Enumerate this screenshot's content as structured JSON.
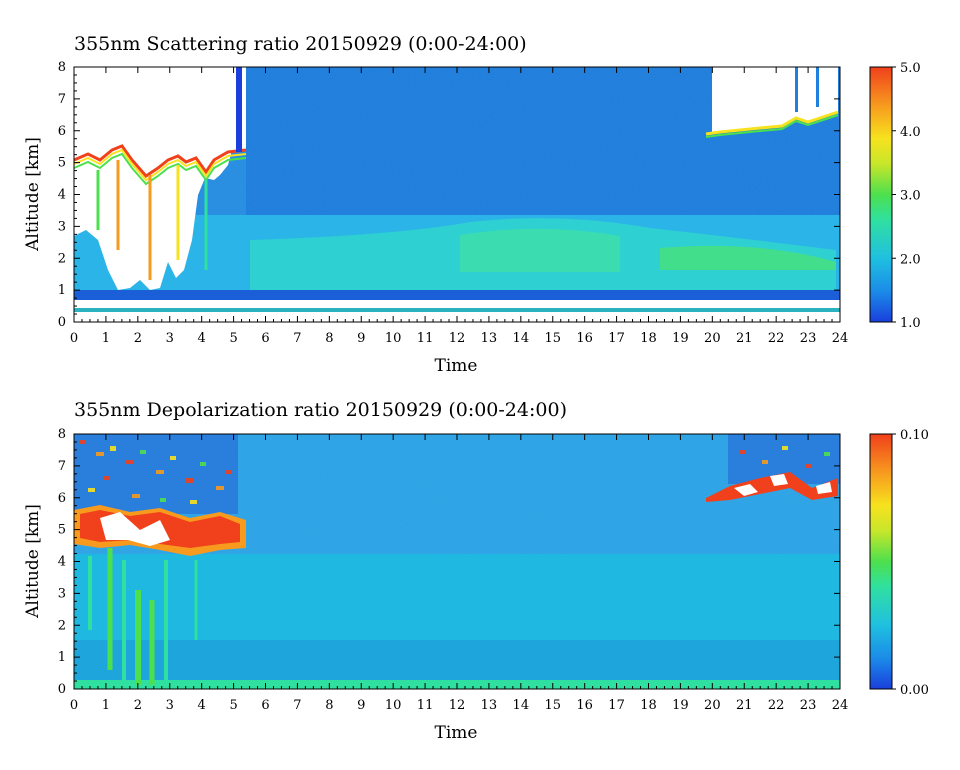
{
  "chart_data": [
    {
      "type": "heatmap",
      "title": "355nm Scattering ratio  20150929 (0:00-24:00)",
      "xlabel": "Time",
      "ylabel": "Altitude [km]",
      "xlim": [
        0,
        24
      ],
      "ylim": [
        0,
        8
      ],
      "x_ticks": [
        "0",
        "1",
        "2",
        "3",
        "4",
        "5",
        "6",
        "7",
        "8",
        "9",
        "10",
        "11",
        "12",
        "13",
        "14",
        "15",
        "16",
        "17",
        "18",
        "19",
        "20",
        "21",
        "22",
        "23",
        "24"
      ],
      "y_ticks": [
        "0",
        "1",
        "2",
        "3",
        "4",
        "5",
        "6",
        "7",
        "8"
      ],
      "colorbar": {
        "range": [
          1.0,
          5.0
        ],
        "tick_labels": [
          "1.0",
          "2.0",
          "3.0",
          "4.0",
          "5.0"
        ],
        "colors": [
          "#1a3fdc",
          "#1b8be8",
          "#1fc0e0",
          "#2fe0a0",
          "#4de04d",
          "#c8e62a",
          "#f7e21e",
          "#f79a1e",
          "#f0401c"
        ]
      },
      "features": {
        "cloud_0_5h_base_km": 4.5,
        "cloud_0_5h_top_km": 5.5,
        "cloud_20_24h_base_km": 6.0,
        "boundary_layer_top_km": 2.8,
        "near_ground_gap_km": [
          0.3,
          0.7
        ]
      }
    },
    {
      "type": "heatmap",
      "title": "355nm Depolarization ratio  20150929 (0:00-24:00)",
      "xlabel": "Time",
      "ylabel": "Altitude [km]",
      "xlim": [
        0,
        24
      ],
      "ylim": [
        0,
        8
      ],
      "x_ticks": [
        "0",
        "1",
        "2",
        "3",
        "4",
        "5",
        "6",
        "7",
        "8",
        "9",
        "10",
        "11",
        "12",
        "13",
        "14",
        "15",
        "16",
        "17",
        "18",
        "19",
        "20",
        "21",
        "22",
        "23",
        "24"
      ],
      "y_ticks": [
        "0",
        "1",
        "2",
        "3",
        "4",
        "5",
        "6",
        "7",
        "8"
      ],
      "colorbar": {
        "range": [
          0.0,
          0.1
        ],
        "tick_labels": [
          "0.00",
          "0.10"
        ],
        "colors": [
          "#1a3fdc",
          "#1b8be8",
          "#1fc0e0",
          "#2fe0a0",
          "#4de04d",
          "#c8e62a",
          "#f7e21e",
          "#f79a1e",
          "#f0401c"
        ]
      },
      "features": {
        "cloud_0_5h_base_km": 4.5,
        "cloud_0_5h_top_km": 5.5,
        "cloud_20_24h_base_km": 6.0
      }
    }
  ]
}
